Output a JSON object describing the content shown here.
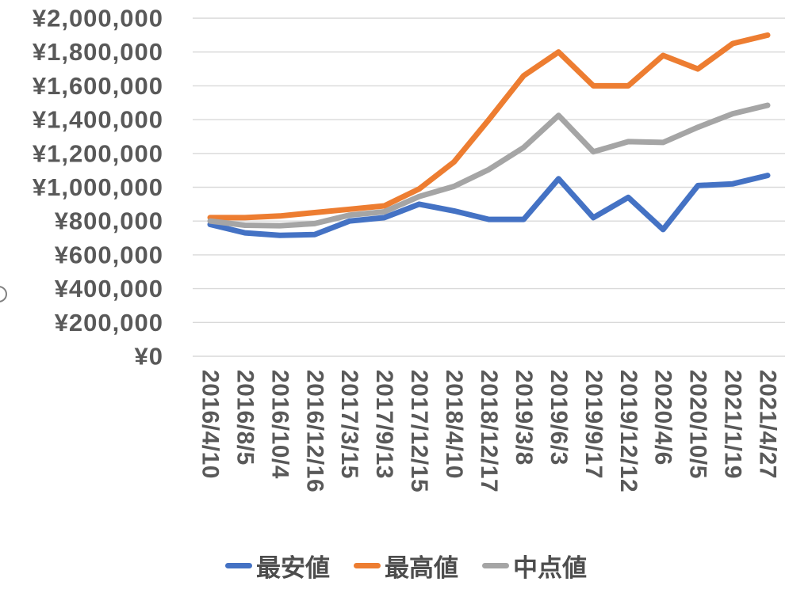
{
  "chart_data": {
    "type": "line",
    "title": "",
    "currency_prefix": "¥",
    "categories": [
      "2016/4/10",
      "2016/8/5",
      "2016/10/4",
      "2016/12/16",
      "2017/3/15",
      "2017/9/13",
      "2017/12/15",
      "2018/4/10",
      "2018/12/17",
      "2019/3/8",
      "2019/6/3",
      "2019/9/17",
      "2019/12/12",
      "2020/4/6",
      "2020/10/5",
      "2021/1/19",
      "2021/4/27"
    ],
    "series": [
      {
        "name": "最安値",
        "key": "min-price",
        "color": "#4472C4",
        "values": [
          780000,
          730000,
          715000,
          720000,
          800000,
          820000,
          900000,
          860000,
          810000,
          810000,
          1050000,
          820000,
          940000,
          750000,
          1010000,
          1020000,
          1070000
        ]
      },
      {
        "name": "最高値",
        "key": "max-price",
        "color": "#ED7D31",
        "values": [
          820000,
          820000,
          830000,
          850000,
          870000,
          890000,
          990000,
          1150000,
          1400000,
          1660000,
          1800000,
          1600000,
          1600000,
          1780000,
          1700000,
          1850000,
          1900000
        ]
      },
      {
        "name": "中点値",
        "key": "mid-price",
        "color": "#A5A5A5",
        "values": [
          800000,
          775000,
          772500,
          785000,
          835000,
          855000,
          945000,
          1005000,
          1105000,
          1235000,
          1425000,
          1210000,
          1270000,
          1265000,
          1355000,
          1435000,
          1485000
        ]
      }
    ],
    "y_axis": {
      "min": 0,
      "max": 2000000,
      "step": 200000,
      "tick_labels": [
        "¥0",
        "¥200,000",
        "¥400,000",
        "¥600,000",
        "¥800,000",
        "¥1,000,000",
        "¥1,200,000",
        "¥1,400,000",
        "¥1,600,000",
        "¥1,800,000",
        "¥2,000,000"
      ]
    },
    "x_axis": {
      "label_rotation_deg": 90
    },
    "legend_position": "bottom",
    "grid": true,
    "colors": {
      "gridline": "#D9D9D9",
      "axis_label": "#595959",
      "legend_label": "#4d4d4d",
      "background": "#FFFFFF"
    }
  }
}
